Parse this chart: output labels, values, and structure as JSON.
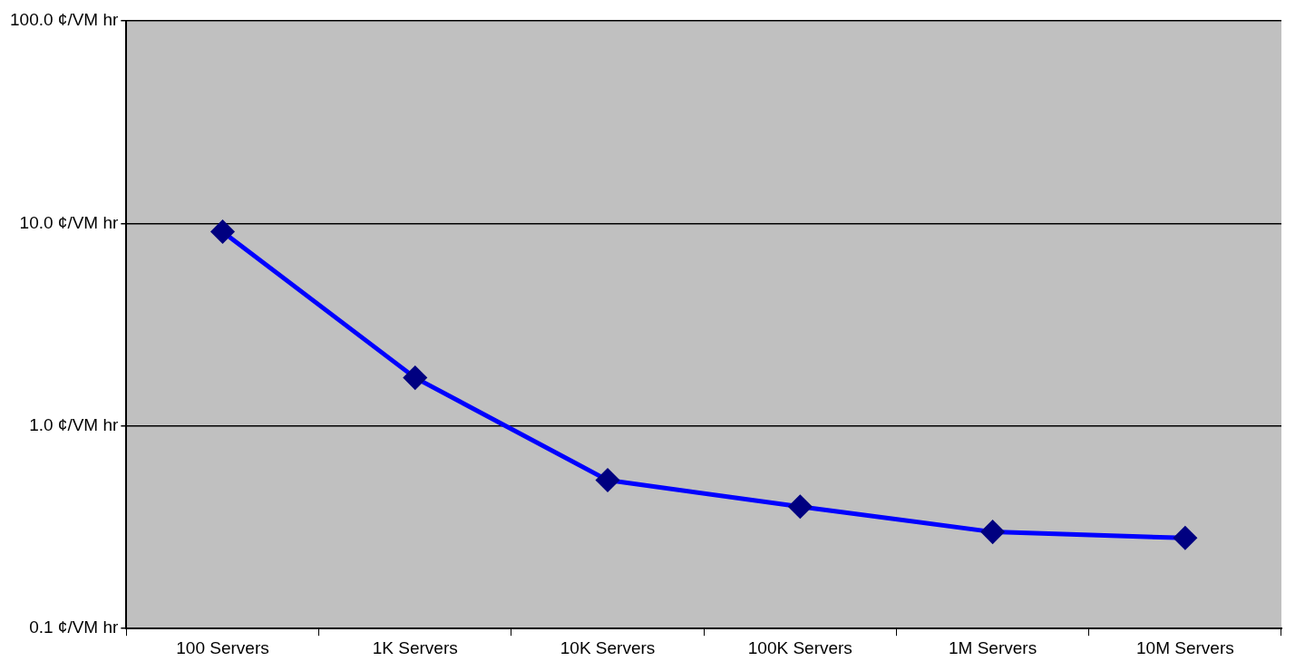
{
  "chart_data": {
    "type": "line",
    "categories": [
      "100 Servers",
      "1K Servers",
      "10K Servers",
      "100K Servers",
      "1M Servers",
      "10M Servers"
    ],
    "series": [
      {
        "color": "#0000ff",
        "values": [
          9.1,
          1.73,
          0.54,
          0.4,
          0.3,
          0.28
        ]
      }
    ],
    "log": "y",
    "ylim": [
      0.1,
      100
    ],
    "yticks": [
      {
        "value": 0.1,
        "label": "0.1 ¢/VM hr"
      },
      {
        "value": 1,
        "label": "1.0 ¢/VM hr"
      },
      {
        "value": 10,
        "label": "10.0 ¢/VM hr"
      },
      {
        "value": 100,
        "label": "100.0 ¢/VM hr"
      }
    ],
    "grid": "y",
    "legend": false,
    "marker": "diamond",
    "line_style": "solid"
  }
}
